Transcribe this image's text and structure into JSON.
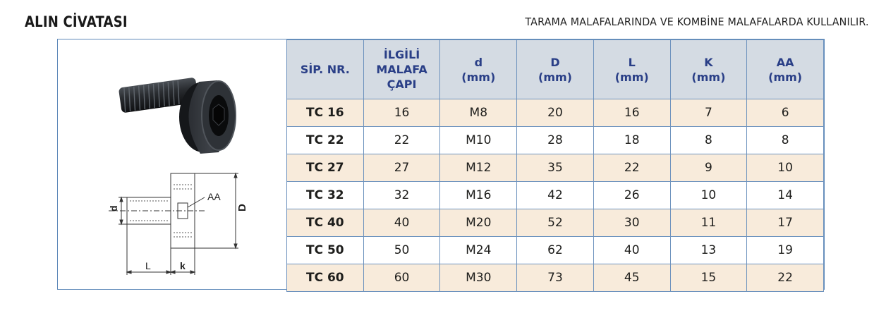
{
  "title": "ALIN CİVATASI",
  "subtitle": "TARAMA MALAFALARINDA VE KOMBİNE MALAFALARDA KULLANILIR.",
  "diagram": {
    "label_aa": "AA",
    "label_d_small": "d",
    "label_d_big": "D",
    "label_l": "L",
    "label_k": "k"
  },
  "table": {
    "headers": [
      [
        "SİP. NR."
      ],
      [
        "İLGİLİ",
        "MALAFA",
        "ÇAPI"
      ],
      [
        "d",
        "(mm)"
      ],
      [
        "D",
        "(mm)"
      ],
      [
        "L",
        "(mm)"
      ],
      [
        "K",
        "(mm)"
      ],
      [
        "AA",
        "(mm)"
      ]
    ],
    "rows": [
      [
        "TC 16",
        "16",
        "M8",
        "20",
        "16",
        "7",
        "6"
      ],
      [
        "TC 22",
        "22",
        "M10",
        "28",
        "18",
        "8",
        "8"
      ],
      [
        "TC 27",
        "27",
        "M12",
        "35",
        "22",
        "9",
        "10"
      ],
      [
        "TC 32",
        "32",
        "M16",
        "42",
        "26",
        "10",
        "14"
      ],
      [
        "TC 40",
        "40",
        "M20",
        "52",
        "30",
        "11",
        "17"
      ],
      [
        "TC 50",
        "50",
        "M24",
        "62",
        "40",
        "13",
        "19"
      ],
      [
        "TC 60",
        "60",
        "M30",
        "73",
        "45",
        "15",
        "22"
      ]
    ]
  }
}
